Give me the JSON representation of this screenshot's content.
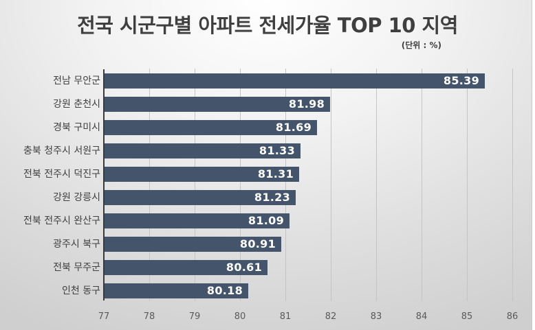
{
  "title": "전국 시군구별 아파트 전세가율 TOP 10 지역",
  "unit_label": "(단위 : %)",
  "colors": {
    "bar": "#44546a",
    "value_text": "#ffffff",
    "axis": "#3a3a3a",
    "grid": "#c4c4c4"
  },
  "chart_data": {
    "type": "bar",
    "orientation": "horizontal",
    "title": "전국 시군구별 아파트 전세가율 TOP 10 지역",
    "subtitle": "(단위 : %)",
    "xlabel": "",
    "ylabel": "",
    "xlim": [
      77,
      86
    ],
    "x_ticks": [
      "77",
      "78",
      "79",
      "80",
      "81",
      "82",
      "83",
      "84",
      "85",
      "86"
    ],
    "grid": "vertical",
    "legend": "none",
    "categories": [
      "전남 무안군",
      "강원 춘천시",
      "경북 구미시",
      "충북 청주시 서원구",
      "전북 전주시 덕진구",
      "강원 강릉시",
      "전북 전주시 완산구",
      "광주시 북구",
      "전북 무주군",
      "인천 동구"
    ],
    "values": [
      85.39,
      81.98,
      81.69,
      81.33,
      81.31,
      81.23,
      81.09,
      80.91,
      80.61,
      80.18
    ],
    "value_labels": [
      "85.39",
      "81.98",
      "81.69",
      "81.33",
      "81.31",
      "81.23",
      "81.09",
      "80.91",
      "80.61",
      "80.18"
    ]
  }
}
